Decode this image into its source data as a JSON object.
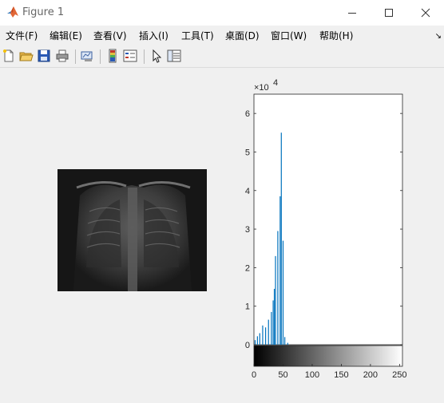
{
  "window": {
    "title": "Figure 1",
    "icon": "matlab-logo-icon",
    "controls": [
      "minimize-icon",
      "maximize-icon",
      "close-icon"
    ]
  },
  "menu": {
    "items": [
      "文件(F)",
      "编辑(E)",
      "查看(V)",
      "插入(I)",
      "工具(T)",
      "桌面(D)",
      "窗口(W)",
      "帮助(H)"
    ],
    "overflow_icon": "dock-arrow-icon"
  },
  "toolbar": {
    "icons": [
      "new-figure-icon",
      "open-file-icon",
      "save-icon",
      "print-icon",
      "link-plot-icon",
      "colorbar-icon",
      "legend-icon",
      "pointer-icon",
      "property-inspector-icon"
    ]
  },
  "image_panel": {
    "content": "chest x-ray grayscale image"
  },
  "chart_data": {
    "type": "bar",
    "title": "",
    "xlabel": "",
    "ylabel": "",
    "exponent_label": "×10",
    "exponent_power": "4",
    "xlim": [
      0,
      255
    ],
    "ylim": [
      0,
      6.5
    ],
    "yscale_factor": 10000,
    "x_ticks": [
      "0",
      "50",
      "100",
      "150",
      "200",
      "250"
    ],
    "x_tick_values": [
      0,
      50,
      100,
      150,
      200,
      250
    ],
    "y_ticks": [
      "0",
      "1",
      "2",
      "3",
      "4",
      "5",
      "6"
    ],
    "y_tick_values": [
      0,
      1,
      2,
      3,
      4,
      5,
      6
    ],
    "bars": [
      {
        "x": 2,
        "y": 0.12
      },
      {
        "x": 6,
        "y": 0.22
      },
      {
        "x": 10,
        "y": 0.3
      },
      {
        "x": 15,
        "y": 0.5
      },
      {
        "x": 20,
        "y": 0.45
      },
      {
        "x": 25,
        "y": 0.65
      },
      {
        "x": 30,
        "y": 0.85
      },
      {
        "x": 33,
        "y": 1.15
      },
      {
        "x": 35,
        "y": 1.45
      },
      {
        "x": 37,
        "y": 2.3
      },
      {
        "x": 41,
        "y": 2.95
      },
      {
        "x": 45,
        "y": 3.85
      },
      {
        "x": 47,
        "y": 5.5
      },
      {
        "x": 50,
        "y": 2.7
      },
      {
        "x": 53,
        "y": 0.2
      },
      {
        "x": 58,
        "y": 0.05
      }
    ],
    "bar_color": "#0072bd",
    "grid": false,
    "colorbar": "grayscale 0-255"
  }
}
